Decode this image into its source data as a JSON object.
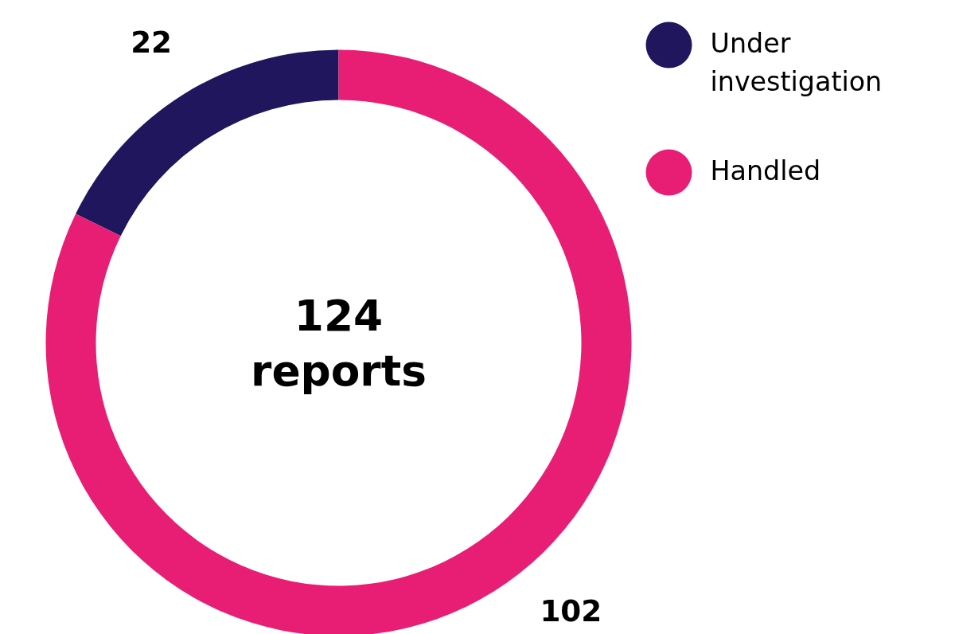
{
  "chart_data": {
    "type": "donut",
    "categories": [
      "Under investigation",
      "Handled"
    ],
    "values": [
      22,
      102
    ],
    "colors": [
      "#20165e",
      "#e81e75"
    ],
    "data_labels": true,
    "legend": "top right",
    "annotations": [
      "124\nreports"
    ]
  }
}
